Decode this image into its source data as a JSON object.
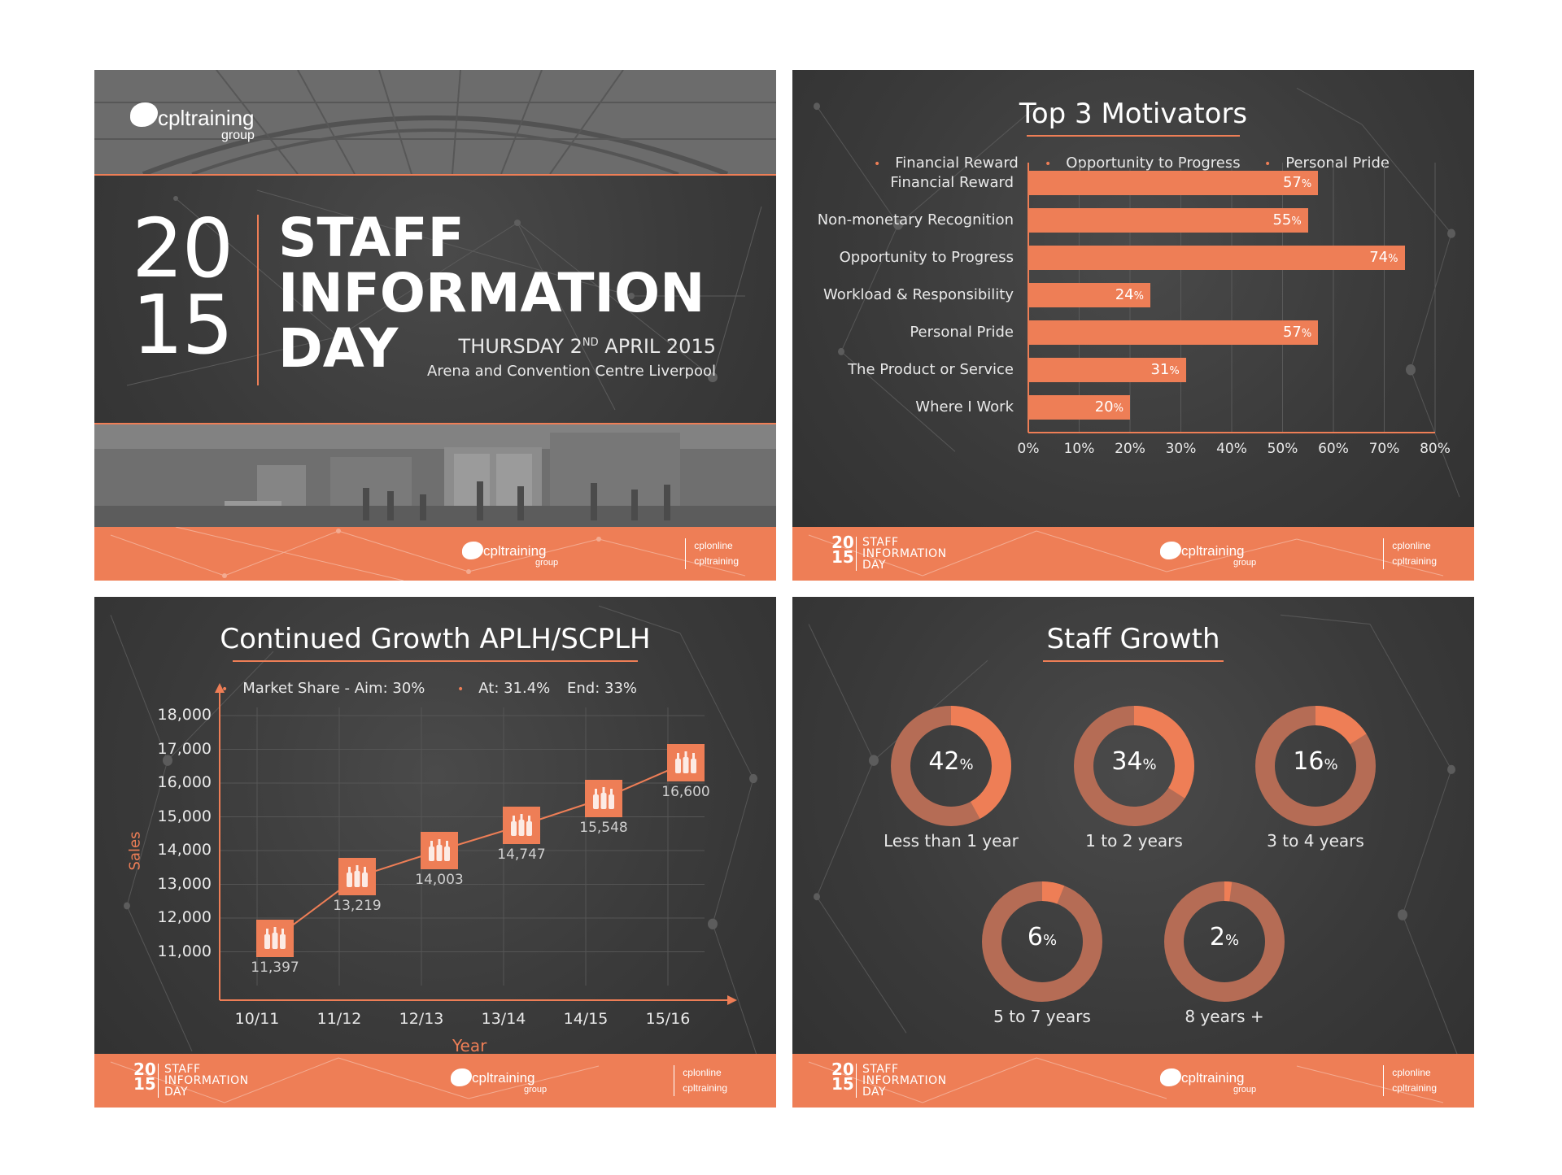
{
  "colors": {
    "accent": "#ee7e56",
    "accent_dark": "#b56c55",
    "background": "#3a3a3a"
  },
  "footer": {
    "year_top": "20",
    "year_bottom": "15",
    "title_lines": [
      "STAFF",
      "INFORMATION",
      "DAY"
    ],
    "logo_name": "cpltraining",
    "logo_group": "group",
    "sub_brands": [
      "cplonline",
      "cpltraining"
    ]
  },
  "slide1": {
    "logo_name": "cpltraining",
    "logo_group": "group",
    "year_top": "20",
    "year_bottom": "15",
    "title_lines": [
      "STAFF",
      "INFORMATION",
      "DAY"
    ],
    "date_prefix": "THURSDAY 2",
    "date_sup": "ND",
    "date_suffix": " APRIL 2015",
    "venue": "Arena and Convention Centre Liverpool"
  },
  "slide2": {
    "title": "Top 3 Motivators",
    "legend": [
      "Financial Reward",
      "Opportunity to Progress",
      "Personal Pride"
    ]
  },
  "slide3": {
    "title": "Continued Growth APLH/SCPLH",
    "legend": [
      "Market Share - Aim: 30%",
      "At: 31.4%",
      "End: 33%"
    ]
  },
  "slide4": {
    "title": "Staff Growth"
  },
  "chart_data": [
    {
      "type": "bar",
      "orientation": "horizontal",
      "categories": [
        "Financial Reward",
        "Non-monetary Recognition",
        "Opportunity to Progress",
        "Workload & Responsibility",
        "Personal Pride",
        "The Product or Service",
        "Where I Work"
      ],
      "values": [
        57,
        55,
        74,
        24,
        57,
        31,
        20
      ],
      "xlim": [
        0,
        80
      ],
      "x_ticks": [
        "0%",
        "10%",
        "20%",
        "30%",
        "40%",
        "50%",
        "60%",
        "70%",
        "80%"
      ]
    },
    {
      "type": "line",
      "x": [
        "10/11",
        "11/12",
        "12/13",
        "13/14",
        "14/15",
        "15/16"
      ],
      "values": [
        11397,
        13219,
        14003,
        14747,
        15548,
        16600
      ],
      "value_labels": [
        "11,397",
        "13,219",
        "14,003",
        "14,747",
        "15,548",
        "16,600"
      ],
      "xlabel": "Year",
      "ylabel": "Sales",
      "ylim": [
        10000,
        18000
      ],
      "y_ticks": [
        "18,000",
        "17,000",
        "16,000",
        "15,000",
        "14,000",
        "13,000",
        "12,000",
        "11,000"
      ]
    },
    {
      "type": "pie",
      "style": "donut",
      "categories": [
        "Less than 1 year",
        "1 to 2 years",
        "3 to 4 years",
        "5 to 7 years",
        "8 years +"
      ],
      "values": [
        42,
        34,
        16,
        6,
        2
      ]
    }
  ]
}
